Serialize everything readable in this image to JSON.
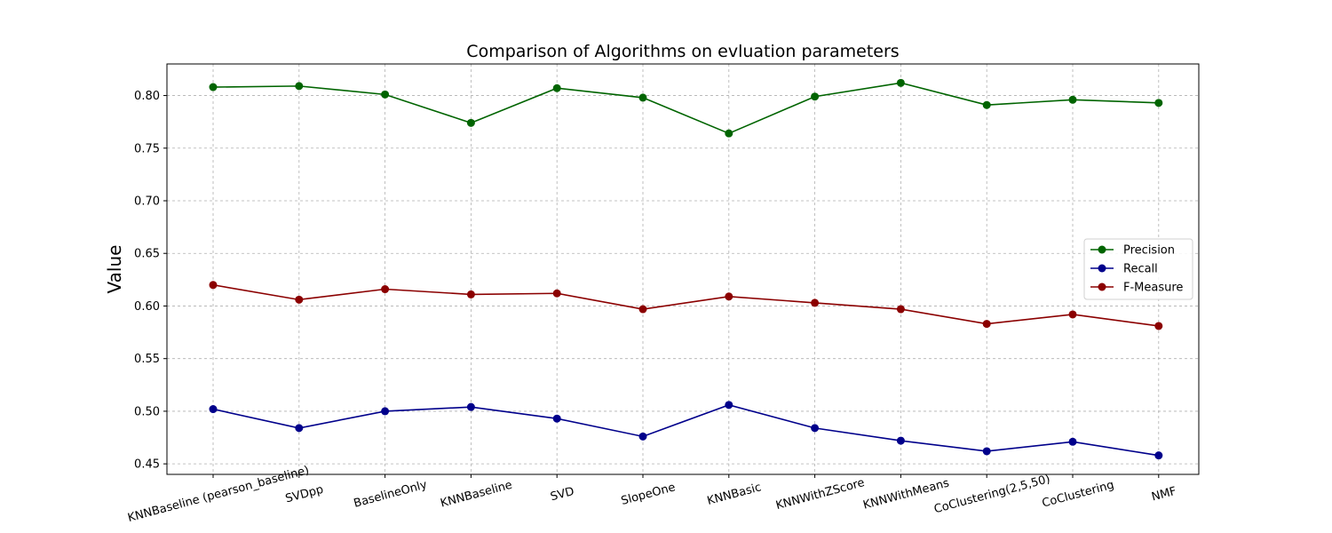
{
  "chart_data": {
    "type": "line",
    "title": "Comparison of Algorithms on evluation parameters",
    "xlabel": "",
    "ylabel": "Value",
    "categories": [
      "KNNBaseline (pearson_baseline)",
      "SVDpp",
      "BaselineOnly",
      "KNNBaseline",
      "SVD",
      "SlopeOne",
      "KNNBasic",
      "KNNWithZScore",
      "KNNWithMeans",
      "CoClustering(2,5,50)",
      "CoClustering",
      "NMF"
    ],
    "ylim": [
      0.44,
      0.83
    ],
    "yticks": [
      0.45,
      0.5,
      0.55,
      0.6,
      0.65,
      0.7,
      0.75,
      0.8
    ],
    "ytick_labels": [
      "0.45",
      "0.50",
      "0.55",
      "0.60",
      "0.65",
      "0.70",
      "0.75",
      "0.80"
    ],
    "grid": true,
    "legend_position": "center-right",
    "series": [
      {
        "name": "Precision",
        "color": "#006400",
        "values": [
          0.808,
          0.809,
          0.801,
          0.774,
          0.807,
          0.798,
          0.764,
          0.799,
          0.812,
          0.791,
          0.796,
          0.793
        ]
      },
      {
        "name": "Recall",
        "color": "#00008b",
        "values": [
          0.502,
          0.484,
          0.5,
          0.504,
          0.493,
          0.476,
          0.506,
          0.484,
          0.472,
          0.462,
          0.471,
          0.458
        ]
      },
      {
        "name": "F-Measure",
        "color": "#8b0000",
        "values": [
          0.62,
          0.606,
          0.616,
          0.611,
          0.612,
          0.597,
          0.609,
          0.603,
          0.597,
          0.583,
          0.592,
          0.581
        ]
      }
    ]
  }
}
